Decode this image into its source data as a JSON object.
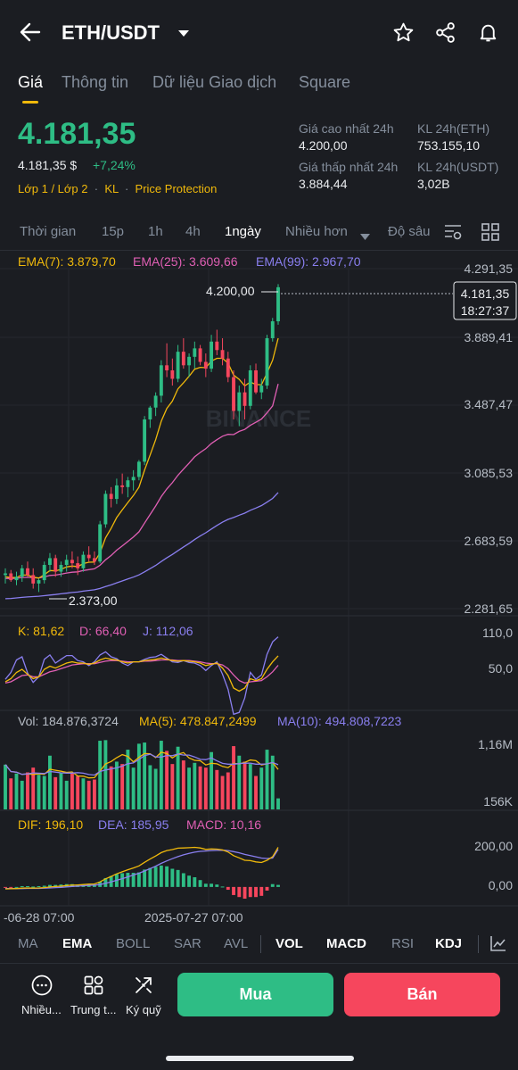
{
  "header": {
    "pair": "ETH/USDT",
    "icons": [
      "back-arrow-icon",
      "dropdown-caret-icon",
      "star-icon",
      "share-icon",
      "bell-icon"
    ]
  },
  "tabs": [
    "Giá",
    "Thông tin",
    "Dữ liệu Giao dịch",
    "Square"
  ],
  "price": {
    "last": "4.181,35",
    "usd": "4.181,35 $",
    "change": "+7,24%",
    "tags": [
      "Lớp 1 / Lớp 2",
      "KL",
      "Price Protection"
    ]
  },
  "stats": {
    "high_label": "Giá cao nhất 24h",
    "high_value": "4.200,00",
    "low_label": "Giá thấp nhất 24h",
    "low_value": "3.884,44",
    "vol_eth_label": "KL 24h(ETH)",
    "vol_eth_value": "753.155,10",
    "vol_usdt_label": "KL 24h(USDT)",
    "vol_usdt_value": "3,02B"
  },
  "timeframes": [
    "Thời gian",
    "15p",
    "1h",
    "4h",
    "1ngày",
    "Nhiều hơn",
    "Độ sâu"
  ],
  "active_timeframe": "1ngày",
  "ema_legend": {
    "ema7": "EMA(7): 3.879,70",
    "ema25": "EMA(25): 3.609,66",
    "ema99": "EMA(99): 2.967,70"
  },
  "price_axis": [
    "4.291,35",
    "3.889,41",
    "3.487,47",
    "3.085,53",
    "2.683,59",
    "2.281,65"
  ],
  "price_tag": {
    "price": "4.181,35",
    "countdown": "18:27:37"
  },
  "high_marker": "4.200,00",
  "low_marker": "2.373,00",
  "watermark": "BINANCE",
  "kdj": {
    "k": "K: 81,62",
    "d": "D: 66,40",
    "j": "J: 112,06",
    "axis": [
      "110,0",
      "50,0"
    ]
  },
  "vol": {
    "vol": "Vol: 184.876,3724",
    "ma5": "MA(5): 478.847,2499",
    "ma10": "MA(10): 494.808,7223",
    "axis": [
      "1,16M",
      "156K"
    ]
  },
  "macd": {
    "dif": "DIF: 196,10",
    "dea": "DEA: 185,95",
    "macd": "MACD: 10,16",
    "axis": [
      "200,00",
      "0,00"
    ]
  },
  "dates": [
    "-06-28 07:00",
    "2025-07-27 07:00"
  ],
  "indicators": [
    "MA",
    "EMA",
    "BOLL",
    "SAR",
    "AVL",
    "VOL",
    "MACD",
    "RSI",
    "KDJ"
  ],
  "active_indicators": [
    "EMA",
    "VOL",
    "MACD",
    "KDJ"
  ],
  "bottom": {
    "more_label": "Nhiều...",
    "trading_label": "Trung t...",
    "fund_label": "Ký quỹ",
    "buy_label": "Mua",
    "sell_label": "Bán"
  },
  "colors": {
    "up": "#2ebd85",
    "down": "#f6465d",
    "accent": "#f0b90b",
    "ema7": "#f0b90b",
    "ema25": "#e05fb4",
    "ema99": "#8a7ff0"
  },
  "chart_data": {
    "type": "candlestick",
    "ylim": [
      2281.65,
      4291.35
    ],
    "candles": [
      [
        2480,
        2520,
        2430,
        2490
      ],
      [
        2490,
        2510,
        2440,
        2450
      ],
      [
        2450,
        2500,
        2420,
        2470
      ],
      [
        2470,
        2540,
        2440,
        2520
      ],
      [
        2520,
        2560,
        2470,
        2480
      ],
      [
        2480,
        2520,
        2400,
        2430
      ],
      [
        2430,
        2460,
        2380,
        2450
      ],
      [
        2450,
        2560,
        2430,
        2540
      ],
      [
        2540,
        2610,
        2500,
        2580
      ],
      [
        2580,
        2600,
        2470,
        2500
      ],
      [
        2500,
        2560,
        2470,
        2540
      ],
      [
        2540,
        2600,
        2500,
        2570
      ],
      [
        2570,
        2620,
        2520,
        2550
      ],
      [
        2550,
        2590,
        2480,
        2520
      ],
      [
        2520,
        2620,
        2500,
        2600
      ],
      [
        2600,
        2650,
        2560,
        2580
      ],
      [
        2580,
        2620,
        2540,
        2560
      ],
      [
        2560,
        2800,
        2550,
        2780
      ],
      [
        2780,
        2980,
        2760,
        2960
      ],
      [
        2960,
        3000,
        2880,
        2930
      ],
      [
        2930,
        3050,
        2900,
        3010
      ],
      [
        3010,
        3080,
        2960,
        3000
      ],
      [
        3000,
        3060,
        2940,
        3040
      ],
      [
        3040,
        3100,
        2980,
        3060
      ],
      [
        3060,
        3160,
        3040,
        3150
      ],
      [
        3150,
        3420,
        3130,
        3400
      ],
      [
        3400,
        3480,
        3350,
        3470
      ],
      [
        3470,
        3560,
        3420,
        3540
      ],
      [
        3540,
        3750,
        3500,
        3720
      ],
      [
        3720,
        3850,
        3650,
        3690
      ],
      [
        3690,
        3760,
        3600,
        3640
      ],
      [
        3640,
        3840,
        3620,
        3800
      ],
      [
        3800,
        3880,
        3700,
        3720
      ],
      [
        3720,
        3790,
        3650,
        3770
      ],
      [
        3770,
        3860,
        3700,
        3820
      ],
      [
        3820,
        3840,
        3720,
        3740
      ],
      [
        3740,
        3790,
        3650,
        3700
      ],
      [
        3700,
        3900,
        3680,
        3860
      ],
      [
        3860,
        3930,
        3780,
        3810
      ],
      [
        3810,
        3880,
        3720,
        3760
      ],
      [
        3760,
        3800,
        3620,
        3650
      ],
      [
        3650,
        3690,
        3400,
        3450
      ],
      [
        3450,
        3600,
        3360,
        3560
      ],
      [
        3560,
        3640,
        3400,
        3480
      ],
      [
        3480,
        3720,
        3460,
        3690
      ],
      [
        3690,
        3730,
        3550,
        3560
      ],
      [
        3560,
        3640,
        3520,
        3600
      ],
      [
        3600,
        3900,
        3580,
        3880
      ],
      [
        3880,
        4000,
        3860,
        3980
      ],
      [
        3980,
        4200,
        3960,
        4181.35
      ]
    ],
    "ema7": [
      2470,
      2465,
      2466,
      2480,
      2480,
      2468,
      2462,
      2482,
      2507,
      2505,
      2514,
      2528,
      2533,
      2530,
      2548,
      2556,
      2557,
      2612,
      2700,
      2757,
      2820,
      2865,
      2909,
      2950,
      3000,
      3100,
      3190,
      3280,
      3390,
      3465,
      3508,
      3581,
      3616,
      3655,
      3697,
      3708,
      3706,
      3745,
      3761,
      3761,
      3733,
      3662,
      3637,
      3598,
      3621,
      3606,
      3605,
      3674,
      3750,
      3879.7
    ],
    "ema25": [
      2460,
      2460,
      2461,
      2466,
      2467,
      2464,
      2463,
      2469,
      2478,
      2480,
      2485,
      2492,
      2497,
      2499,
      2507,
      2512,
      2517,
      2538,
      2570,
      2596,
      2627,
      2652,
      2679,
      2705,
      2736,
      2787,
      2838,
      2888,
      2944,
      2989,
      3026,
      3070,
      3106,
      3142,
      3179,
      3205,
      3227,
      3258,
      3280,
      3301,
      3312,
      3310,
      3329,
      3341,
      3365,
      3383,
      3402,
      3439,
      3480,
      3609.66
    ],
    "ema99": [
      2340,
      2342,
      2345,
      2348,
      2351,
      2353,
      2355,
      2358,
      2362,
      2365,
      2369,
      2373,
      2377,
      2380,
      2385,
      2389,
      2393,
      2401,
      2412,
      2422,
      2434,
      2445,
      2457,
      2468,
      2481,
      2499,
      2518,
      2537,
      2560,
      2582,
      2602,
      2624,
      2646,
      2667,
      2690,
      2711,
      2730,
      2752,
      2773,
      2793,
      2809,
      2820,
      2834,
      2846,
      2863,
      2876,
      2891,
      2911,
      2933,
      2967.7
    ],
    "kdj": {
      "ylim": [
        0,
        120
      ],
      "k": [
        40,
        45,
        55,
        60,
        52,
        45,
        48,
        60,
        65,
        62,
        66,
        70,
        72,
        70,
        70,
        68,
        70,
        75,
        78,
        76,
        75,
        72,
        70,
        72,
        72,
        74,
        75,
        76,
        78,
        76,
        74,
        73,
        74,
        73,
        72,
        70,
        66,
        68,
        70,
        62,
        50,
        30,
        25,
        30,
        45,
        42,
        45,
        60,
        72,
        81.62
      ],
      "d": [
        38,
        40,
        45,
        50,
        51,
        48,
        48,
        52,
        56,
        58,
        61,
        64,
        67,
        68,
        69,
        69,
        69,
        71,
        73,
        74,
        74,
        73,
        72,
        72,
        72,
        73,
        73,
        74,
        75,
        75,
        75,
        74,
        74,
        74,
        73,
        72,
        70,
        69,
        69,
        67,
        61,
        51,
        42,
        38,
        40,
        41,
        42,
        48,
        56,
        66.4
      ],
      "j": [
        44,
        55,
        75,
        80,
        54,
        39,
        48,
        76,
        83,
        70,
        76,
        82,
        82,
        74,
        72,
        66,
        72,
        83,
        88,
        80,
        77,
        70,
        66,
        72,
        72,
        76,
        79,
        80,
        84,
        78,
        72,
        71,
        74,
        71,
        70,
        66,
        58,
        66,
        72,
        52,
        28,
        -12,
        -9,
        14,
        55,
        44,
        51,
        84,
        104,
        112.06
      ]
    },
    "volume": {
      "ylim": [
        0,
        1300000
      ],
      "values": [
        750000,
        520000,
        600000,
        480000,
        620000,
        700000,
        580000,
        560000,
        900000,
        540000,
        620000,
        480000,
        600000,
        560000,
        520000,
        480000,
        500000,
        1150000,
        1160000,
        720000,
        800000,
        760000,
        1000000,
        700000,
        1100000,
        1120000,
        740000,
        680000,
        1150000,
        980000,
        760000,
        1050000,
        820000,
        700000,
        780000,
        720000,
        700000,
        960000,
        660000,
        560000,
        620000,
        1060000,
        900000,
        800000,
        760000,
        560000,
        700000,
        1000000,
        900000,
        184876
      ]
    },
    "macd": {
      "ylim": [
        -80,
        260
      ],
      "dif": [
        -10,
        -9,
        -8,
        -6,
        -5,
        -6,
        -5,
        -3,
        0,
        2,
        4,
        7,
        9,
        10,
        12,
        14,
        15,
        25,
        40,
        52,
        65,
        75,
        85,
        94,
        104,
        122,
        138,
        153,
        170,
        180,
        185,
        192,
        193,
        194,
        196,
        193,
        186,
        188,
        187,
        183,
        173,
        155,
        144,
        132,
        130,
        124,
        121,
        132,
        150,
        196.1
      ],
      "dea": [
        -8,
        -8,
        -8,
        -8,
        -7,
        -7,
        -7,
        -6,
        -5,
        -3,
        -2,
        0,
        2,
        4,
        6,
        8,
        9,
        12,
        18,
        25,
        33,
        41,
        50,
        59,
        68,
        79,
        91,
        103,
        117,
        129,
        140,
        150,
        159,
        166,
        172,
        176,
        178,
        180,
        181,
        182,
        180,
        175,
        169,
        161,
        155,
        149,
        143,
        141,
        143,
        185.95
      ],
      "macd": [
        -4,
        -2,
        0,
        4,
        4,
        2,
        4,
        6,
        10,
        10,
        12,
        14,
        14,
        12,
        12,
        12,
        12,
        26,
        44,
        54,
        64,
        68,
        70,
        70,
        72,
        86,
        94,
        100,
        106,
        102,
        90,
        84,
        68,
        56,
        48,
        34,
        16,
        16,
        12,
        2,
        -14,
        -40,
        -50,
        -58,
        -50,
        -50,
        -44,
        -18,
        14,
        10.16
      ]
    }
  }
}
